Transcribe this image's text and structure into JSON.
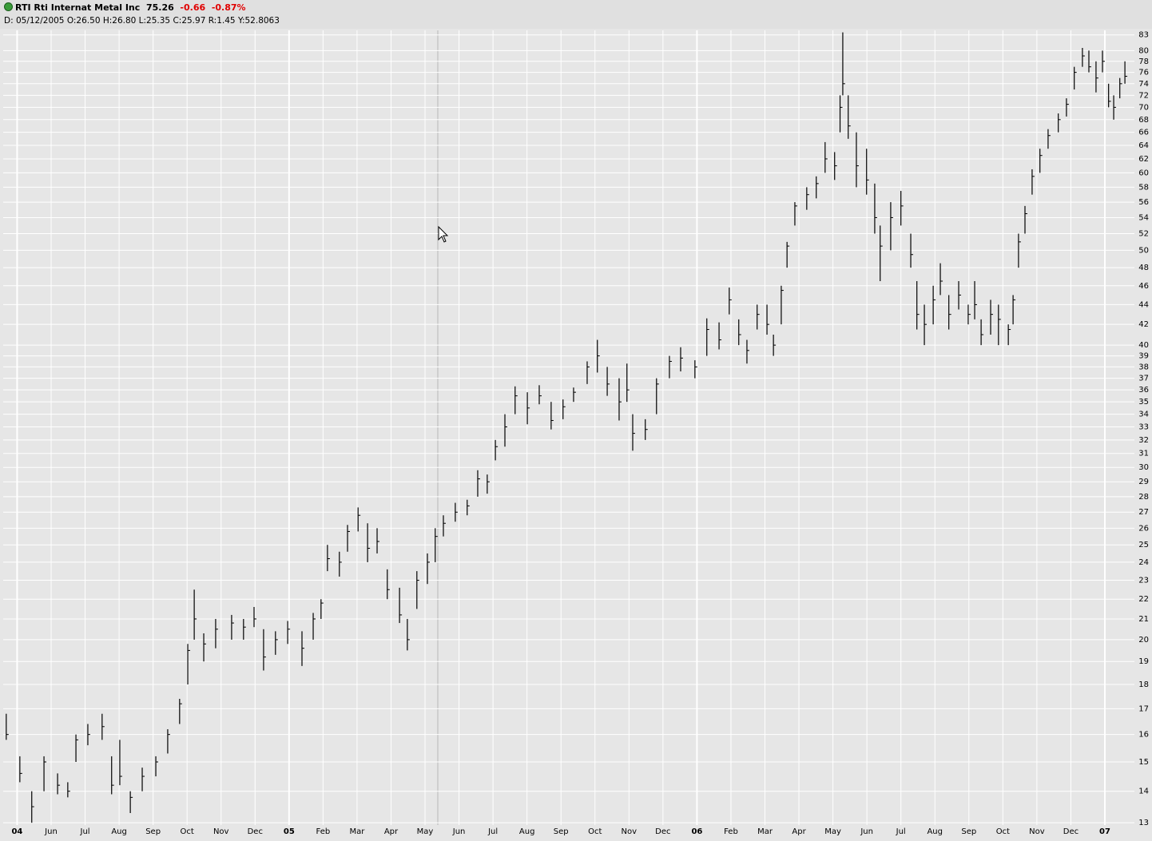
{
  "chart_data": {
    "type": "ohlc",
    "symbol": "RTI Rti Internat Metal Inc",
    "last": "75.26",
    "change": "-0.66",
    "change_pct": "-0.87%",
    "info": "D: 05/12/2005 O:26.50 H:26.80 L:25.35 C:25.97 R:1.45 Y:52.8063",
    "log_scale": true,
    "grid": true,
    "color": "#000000",
    "xlim": [
      -0.41,
      32.87
    ],
    "ylim": [
      12.93,
      83.9
    ],
    "xticks": [
      {
        "value": 0,
        "label": "04"
      },
      {
        "value": 1,
        "label": "Jun"
      },
      {
        "value": 2,
        "label": "Jul"
      },
      {
        "value": 3,
        "label": "Aug"
      },
      {
        "value": 4,
        "label": "Sep"
      },
      {
        "value": 5,
        "label": "Oct"
      },
      {
        "value": 6,
        "label": "Nov"
      },
      {
        "value": 7,
        "label": "Dec"
      },
      {
        "value": 8,
        "label": "05"
      },
      {
        "value": 9,
        "label": "Feb"
      },
      {
        "value": 10,
        "label": "Mar"
      },
      {
        "value": 11,
        "label": "Apr"
      },
      {
        "value": 12,
        "label": "May"
      },
      {
        "value": 13,
        "label": "Jun"
      },
      {
        "value": 14,
        "label": "Jul"
      },
      {
        "value": 15,
        "label": "Aug"
      },
      {
        "value": 16,
        "label": "Sep"
      },
      {
        "value": 17,
        "label": "Oct"
      },
      {
        "value": 18,
        "label": "Nov"
      },
      {
        "value": 19,
        "label": "Dec"
      },
      {
        "value": 20,
        "label": "06"
      },
      {
        "value": 21,
        "label": "Feb"
      },
      {
        "value": 22,
        "label": "Mar"
      },
      {
        "value": 23,
        "label": "Apr"
      },
      {
        "value": 24,
        "label": "May"
      },
      {
        "value": 25,
        "label": "Jun"
      },
      {
        "value": 26,
        "label": "Jul"
      },
      {
        "value": 27,
        "label": "Aug"
      },
      {
        "value": 28,
        "label": "Sep"
      },
      {
        "value": 29,
        "label": "Oct"
      },
      {
        "value": 30,
        "label": "Nov"
      },
      {
        "value": 31,
        "label": "Dec"
      },
      {
        "value": 32,
        "label": "07"
      }
    ],
    "yticks": [
      83,
      80,
      78,
      76,
      74,
      72,
      70,
      68,
      66,
      64,
      62,
      60,
      58,
      56,
      54,
      52,
      50,
      48,
      46,
      44,
      42,
      40,
      39,
      38,
      37,
      36,
      35,
      34,
      33,
      32,
      31,
      30,
      29,
      28,
      27,
      26,
      25,
      24,
      23,
      22,
      21,
      20,
      19,
      18,
      17,
      16,
      15,
      14,
      13
    ],
    "x": [
      -0.32,
      0.08,
      0.43,
      0.79,
      1.19,
      1.49,
      1.73,
      2.08,
      2.5,
      2.78,
      3.02,
      3.33,
      3.68,
      4.08,
      4.43,
      4.78,
      5.02,
      5.21,
      5.49,
      5.84,
      6.31,
      6.66,
      6.97,
      7.25,
      7.6,
      7.96,
      8.38,
      8.71,
      8.94,
      9.13,
      9.48,
      9.72,
      10.03,
      10.31,
      10.59,
      10.89,
      11.25,
      11.48,
      11.76,
      12.07,
      12.3,
      12.54,
      12.89,
      13.24,
      13.55,
      13.83,
      14.07,
      14.35,
      14.65,
      15.01,
      15.36,
      15.71,
      16.06,
      16.37,
      16.77,
      17.07,
      17.36,
      17.71,
      17.94,
      18.11,
      18.48,
      18.81,
      19.19,
      19.52,
      19.94,
      20.29,
      20.65,
      20.95,
      21.23,
      21.47,
      21.77,
      22.06,
      22.25,
      22.48,
      22.65,
      22.88,
      23.23,
      23.51,
      23.77,
      24.05,
      24.21,
      24.29,
      24.45,
      24.69,
      24.99,
      25.23,
      25.39,
      25.7,
      26.0,
      26.29,
      26.47,
      26.69,
      26.95,
      27.16,
      27.41,
      27.7,
      27.98,
      28.17,
      28.36,
      28.64,
      28.87,
      29.16,
      29.3,
      29.46,
      29.65,
      29.86,
      30.09,
      30.33,
      30.63,
      30.87,
      31.1,
      31.34,
      31.53,
      31.74,
      31.93,
      32.11,
      32.26,
      32.44,
      32.59
    ],
    "high": [
      16.8,
      15.2,
      14.0,
      15.2,
      14.6,
      14.3,
      16.0,
      16.4,
      16.8,
      15.2,
      15.8,
      14.0,
      14.8,
      15.2,
      16.2,
      17.4,
      19.8,
      22.5,
      20.3,
      21.0,
      21.2,
      21.0,
      21.6,
      20.5,
      20.4,
      20.9,
      20.4,
      21.3,
      22.0,
      25.0,
      24.6,
      26.2,
      27.3,
      26.3,
      26.0,
      23.6,
      22.6,
      21.0,
      23.5,
      24.5,
      26.0,
      26.8,
      27.6,
      27.8,
      29.8,
      29.5,
      32.0,
      34.0,
      36.3,
      35.8,
      36.4,
      35.0,
      35.2,
      36.2,
      38.5,
      40.5,
      38.0,
      37.0,
      38.3,
      34.0,
      33.6,
      37.0,
      39.0,
      39.8,
      38.6,
      42.6,
      42.2,
      45.8,
      42.5,
      40.5,
      44.0,
      44.0,
      41.0,
      46.0,
      51.0,
      56.0,
      58.0,
      59.5,
      64.5,
      63.0,
      72.0,
      83.5,
      72.0,
      66.0,
      63.5,
      58.5,
      53.0,
      56.0,
      57.5,
      52.0,
      46.5,
      44.0,
      46.0,
      48.5,
      45.0,
      46.5,
      44.0,
      46.5,
      42.5,
      44.5,
      44.0,
      42.0,
      45.0,
      52.0,
      55.5,
      60.5,
      63.5,
      66.5,
      69.0,
      71.5,
      77.0,
      80.5,
      80.0,
      78.0,
      80.0,
      74.0,
      72.0,
      75.0,
      78.0
    ],
    "low": [
      15.8,
      14.3,
      13.0,
      14.0,
      13.9,
      13.8,
      15.0,
      15.6,
      15.8,
      13.9,
      14.2,
      13.3,
      14.0,
      14.5,
      15.3,
      16.4,
      18.0,
      20.0,
      19.0,
      19.6,
      20.0,
      20.0,
      20.6,
      18.6,
      19.3,
      19.8,
      18.8,
      20.0,
      21.0,
      23.5,
      23.2,
      24.6,
      25.8,
      24.0,
      24.5,
      22.0,
      20.8,
      19.5,
      21.5,
      22.8,
      24.0,
      25.5,
      26.4,
      26.8,
      28.0,
      28.2,
      30.5,
      31.5,
      34.0,
      33.2,
      34.8,
      32.8,
      33.6,
      35.0,
      36.5,
      37.5,
      35.5,
      33.5,
      35.0,
      31.2,
      32.0,
      34.0,
      37.0,
      37.6,
      37.0,
      39.0,
      39.6,
      43.0,
      40.0,
      38.3,
      41.5,
      41.0,
      39.0,
      42.0,
      48.0,
      53.0,
      55.0,
      56.5,
      60.0,
      59.0,
      66.0,
      72.0,
      65.0,
      58.0,
      57.0,
      52.0,
      46.5,
      50.0,
      53.0,
      48.0,
      41.5,
      40.0,
      42.0,
      45.0,
      41.5,
      43.5,
      42.0,
      42.5,
      40.0,
      41.0,
      40.0,
      40.0,
      42.0,
      48.0,
      52.0,
      57.0,
      60.0,
      63.5,
      66.0,
      68.5,
      73.0,
      77.0,
      76.0,
      72.5,
      76.0,
      70.0,
      68.0,
      71.5,
      74.0
    ],
    "close": [
      16.0,
      14.6,
      13.5,
      15.0,
      14.2,
      14.0,
      15.8,
      16.0,
      16.3,
      14.2,
      14.5,
      13.8,
      14.5,
      15.0,
      16.0,
      17.2,
      19.5,
      21.0,
      19.8,
      20.5,
      20.8,
      20.6,
      21.0,
      19.2,
      20.0,
      20.5,
      19.6,
      21.0,
      21.8,
      24.2,
      24.0,
      25.8,
      26.8,
      24.8,
      25.2,
      22.5,
      21.2,
      20.0,
      23.0,
      24.0,
      25.5,
      26.3,
      27.0,
      27.4,
      29.2,
      29.0,
      31.5,
      33.0,
      35.5,
      34.5,
      35.5,
      33.5,
      34.6,
      35.8,
      38.0,
      39.0,
      36.5,
      35.0,
      36.0,
      32.5,
      32.8,
      36.5,
      38.5,
      38.8,
      38.0,
      41.5,
      40.5,
      44.5,
      41.0,
      39.5,
      43.0,
      42.0,
      40.0,
      45.5,
      50.5,
      55.5,
      57.0,
      58.5,
      62.0,
      61.0,
      70.0,
      74.0,
      67.0,
      61.0,
      59.0,
      54.0,
      50.5,
      54.0,
      55.5,
      49.5,
      43.0,
      42.0,
      44.5,
      46.5,
      43.0,
      45.0,
      43.0,
      44.0,
      41.0,
      43.0,
      42.5,
      41.5,
      44.5,
      51.0,
      54.5,
      59.5,
      62.5,
      65.5,
      68.0,
      70.5,
      76.0,
      79.0,
      77.0,
      75.0,
      78.0,
      71.0,
      70.0,
      74.0,
      75.3
    ]
  }
}
